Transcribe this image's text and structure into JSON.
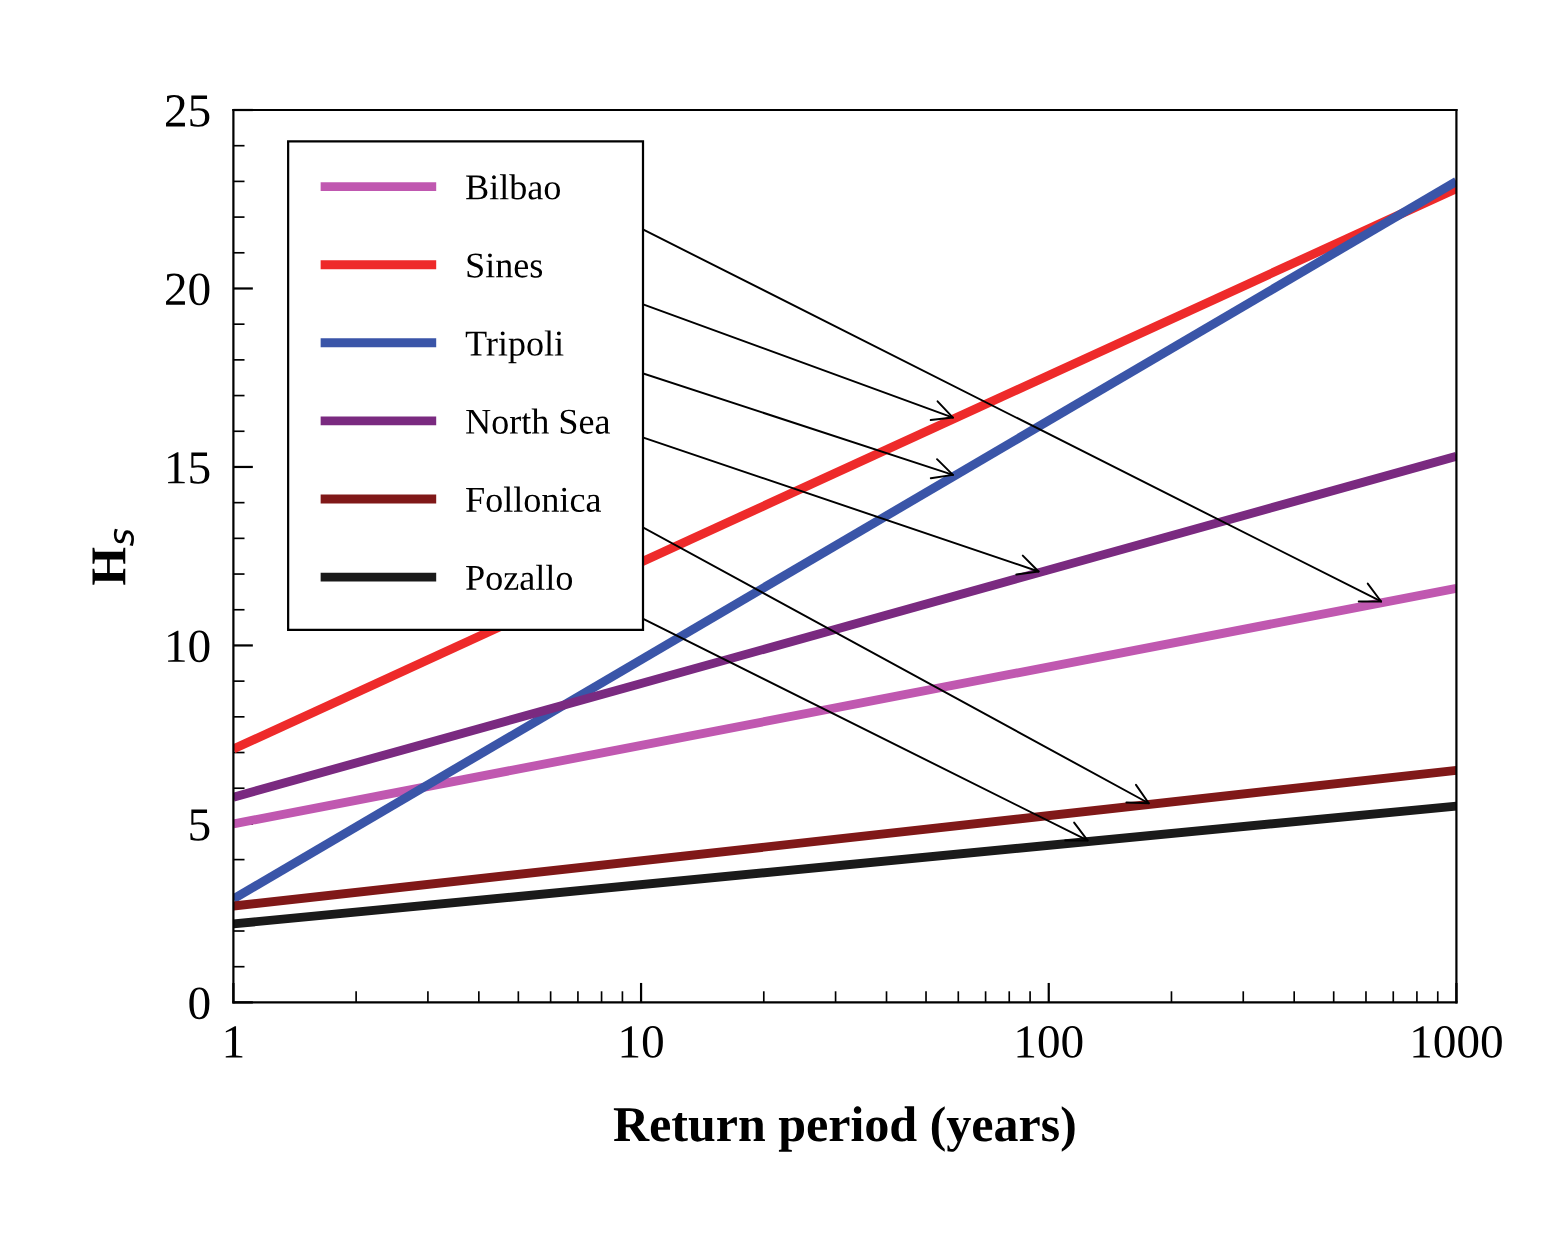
{
  "chart_data": {
    "type": "line",
    "xlabel": "Return period (years)",
    "ylabel": "H$_{s}$",
    "x": [
      1,
      1000
    ],
    "xlim": [
      1,
      1000
    ],
    "xticks": [
      1,
      10,
      100,
      1000
    ],
    "ylim": [
      0,
      25
    ],
    "yticks": [
      0,
      5,
      10,
      15,
      20,
      25
    ],
    "log": "x",
    "grid": false,
    "legend": "top left",
    "marker": "none",
    "line_style": "solid",
    "series": [
      {
        "name": "Bilbao",
        "color": "#c058b0",
        "values": [
          5.0,
          11.6
        ]
      },
      {
        "name": "Sines",
        "color": "#ee2a2a",
        "values": [
          7.1,
          22.8
        ]
      },
      {
        "name": "Tripoli",
        "color": "#3a55a8",
        "values": [
          2.9,
          23.0
        ]
      },
      {
        "name": "North Sea",
        "color": "#7a2a80",
        "values": [
          5.75,
          15.3
        ]
      },
      {
        "name": "Follonica",
        "color": "#801818",
        "values": [
          2.7,
          6.5
        ]
      },
      {
        "name": "Pozallo",
        "color": "#1a1a1a",
        "values": [
          2.2,
          5.5
        ]
      }
    ]
  }
}
